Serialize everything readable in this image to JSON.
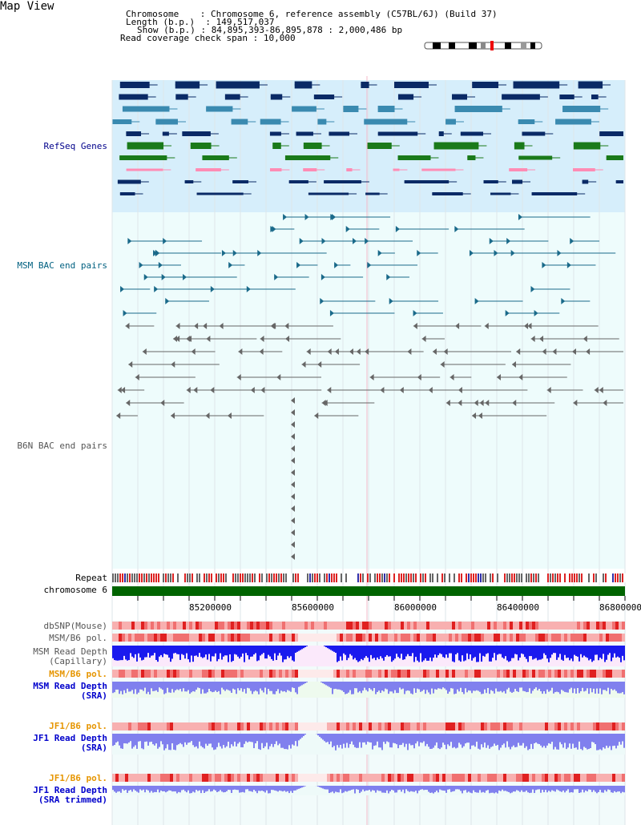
{
  "title": "Map View",
  "info": {
    "line1_key": "Chromosome",
    "line1_val": "Chromosome 6, reference assembly (C57BL/6J) (Build 37)",
    "line2_key": "Length (b.p.)",
    "line2_val": "149,517,037",
    "line3_key": "Show (b.p.)",
    "line3_val": "84,895,393-86,895,878 : 2,000,486 bp",
    "line4_key": "Read coverage check span",
    "line4_val": "10,000"
  },
  "tracks": {
    "refseq": "RefSeq Genes",
    "msm_bac": "MSM BAC end pairs",
    "b6n_bac": "B6N BAC end pairs",
    "repeat": "Repeat",
    "chromosome": "chromosome 6",
    "dbsnp": "dbSNP(Mouse)",
    "msm_b6_pol": "MSM/B6 pol.",
    "msm_depth_cap_1": "MSM Read Depth",
    "msm_depth_cap_2": "(Capillary)",
    "msm_b6_pol2": "MSM/B6 pol.",
    "msm_depth_sra_1": "MSM Read Depth",
    "msm_depth_sra_2": "(SRA)",
    "jf1_b6_pol": "JF1/B6 pol.",
    "jf1_depth_sra_1": "JF1 Read Depth",
    "jf1_depth_sra_2": "(SRA)",
    "jf1_b6_pol2": "JF1/B6 pol.",
    "jf1_depth_trim_1": "JF1 Read Depth",
    "jf1_depth_trim_2": "(SRA trimmed)"
  },
  "axis": {
    "ticks": [
      "85200000",
      "85600000",
      "86000000",
      "86400000",
      "86800000"
    ]
  },
  "colors": {
    "refseq_bg": "#d6eefb",
    "bac_bg": "#eefcfc",
    "gene_dark": "#0a2a66",
    "gene_mid": "#3a8ab0",
    "gene_green": "#1a7a1a",
    "gene_pink": "#ff8cb4",
    "msm_pair": "#1a6a8a",
    "b6n_pair": "#666666",
    "chromosome": "#006400",
    "depth_blue": "#1a1aee",
    "depth_light": "#8080ee"
  }
}
